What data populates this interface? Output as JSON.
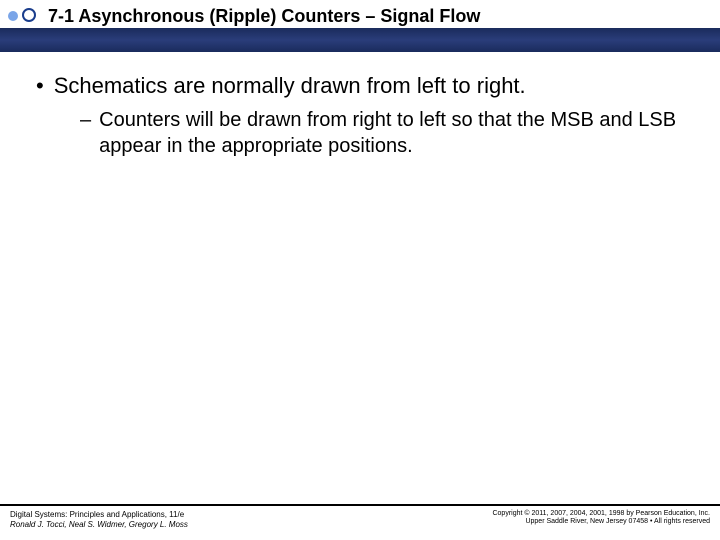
{
  "header": {
    "title": "7-1 Asynchronous (Ripple) Counters – Signal Flow",
    "bar_color": "#1a2b5c",
    "circle_border_color": "#1a3d8c",
    "circle_fill_color": "#7aa5e8"
  },
  "content": {
    "main_bullet": "Schematics are normally drawn from left to right.",
    "sub_bullet": "Counters will be drawn from right to left so that the MSB and LSB appear in the appropriate positions."
  },
  "footer": {
    "book_title": "Digital Systems: Principles and Applications, 11/e",
    "authors": "Ronald J. Tocci, Neal S. Widmer, Gregory L. Moss",
    "copyright_line1": "Copyright © 2011, 2007, 2004, 2001, 1998 by Pearson Education, Inc.",
    "copyright_line2": "Upper Saddle River, New Jersey 07458 • All rights reserved"
  }
}
